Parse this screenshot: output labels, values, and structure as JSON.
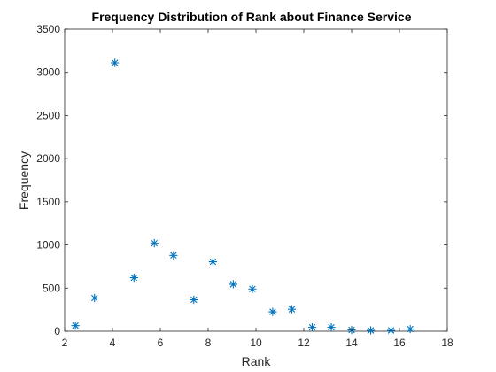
{
  "chart_data": {
    "type": "scatter",
    "title": "Frequency Distribution of Rank about Finance Service",
    "xlabel": "Rank",
    "ylabel": "Frequency",
    "xlim": [
      2,
      18
    ],
    "ylim": [
      0,
      3500
    ],
    "xticks": [
      2,
      4,
      6,
      8,
      10,
      12,
      14,
      16,
      18
    ],
    "yticks": [
      0,
      500,
      1000,
      1500,
      2000,
      2500,
      3000,
      3500
    ],
    "marker": "asterisk",
    "color": "#0072BD",
    "grid": false,
    "points": [
      {
        "x": 2.45,
        "y": 65
      },
      {
        "x": 3.25,
        "y": 385
      },
      {
        "x": 4.1,
        "y": 3110
      },
      {
        "x": 4.9,
        "y": 620
      },
      {
        "x": 5.75,
        "y": 1020
      },
      {
        "x": 6.55,
        "y": 880
      },
      {
        "x": 7.4,
        "y": 365
      },
      {
        "x": 8.2,
        "y": 805
      },
      {
        "x": 9.05,
        "y": 545
      },
      {
        "x": 9.85,
        "y": 490
      },
      {
        "x": 10.7,
        "y": 225
      },
      {
        "x": 11.5,
        "y": 255
      },
      {
        "x": 12.35,
        "y": 45
      },
      {
        "x": 13.15,
        "y": 45
      },
      {
        "x": 14.0,
        "y": 15
      },
      {
        "x": 14.8,
        "y": 10
      },
      {
        "x": 15.65,
        "y": 10
      },
      {
        "x": 16.45,
        "y": 25
      }
    ]
  }
}
